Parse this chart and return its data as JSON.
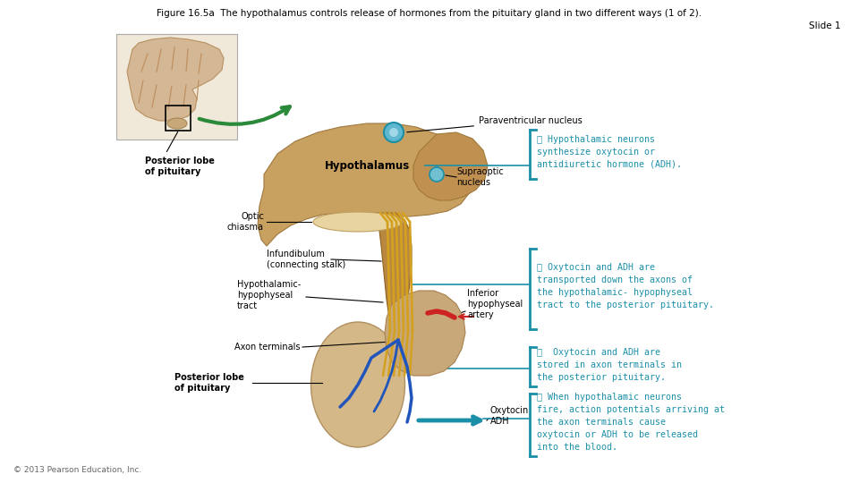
{
  "title_line1": "Figure 16.5a  The hypothalamus controls release of hormones from the pituitary gland in two different ways (1 of 2).",
  "title_line2": "Slide 1",
  "title_fontsize": 7.5,
  "teal_color": "#1B8FA8",
  "black_color": "#000000",
  "bg_color": "#ffffff",
  "step1": "① Hypothalamic neurons\nsynthesize oxytocin or\nantidiuretic hormone (ADH).",
  "step2": "② Oxytocin and ADH are\ntransported down the axons of\nthe hypothalamic- hypophyseal\ntract to the posterior pituitary.",
  "step3": "③  Oxytocin and ADH are\nstored in axon terminals in\nthe posterior pituitary.",
  "step4": "④ When hypothalamic neurons\nfire, action potentials arriving at\nthe axon terminals cause\noxytocin or ADH to be released\ninto the blood.",
  "lbl_paraventricular": "Paraventricular nucleus",
  "lbl_hypothalamus": "Hypothalamus",
  "lbl_post_top": "Posterior lobe\nof pituitary",
  "lbl_optic": "Optic\nchiasma",
  "lbl_supraoptic": "Supraoptic\nnucleus",
  "lbl_infundibulum": "Infundibulum\n(connecting stalk)",
  "lbl_hypo_tract": "Hypothalamic-\nhypophyseal\ntract",
  "lbl_inferior": "Inferior\nhypophyseal\nartery",
  "lbl_axon": "Axon terminals",
  "lbl_post_bot": "Posterior lobe\nof pituitary",
  "lbl_oxytocin": "Oxytocin\nADH",
  "copyright": "© 2013 Pearson Education, Inc.",
  "step_fs": 7.2,
  "lbl_fs": 7.0
}
